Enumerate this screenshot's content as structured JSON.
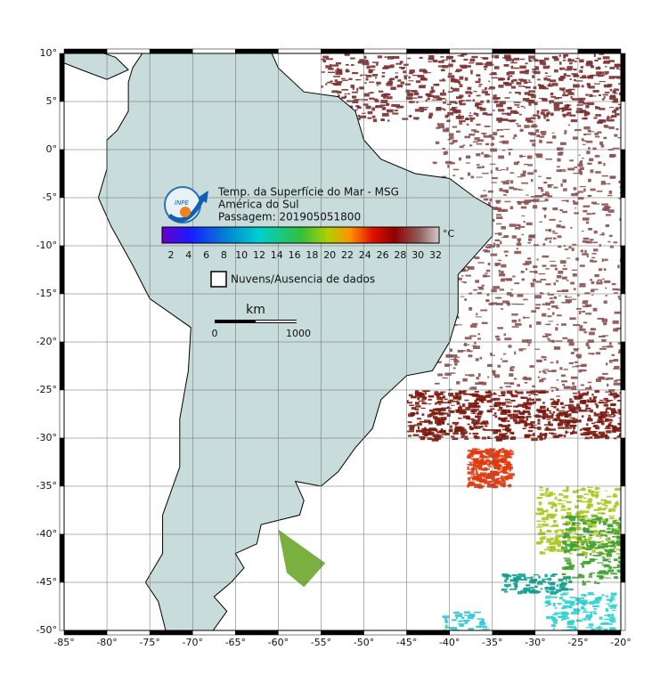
{
  "map": {
    "title_lines": [
      "Temp. da Superfície do Mar - MSG",
      "América do Sul",
      "Passagem: 201905051800"
    ],
    "colorbar": {
      "unit": "°C",
      "ticks": [
        2,
        4,
        6,
        8,
        10,
        12,
        14,
        16,
        18,
        20,
        22,
        24,
        26,
        28,
        30,
        32
      ]
    },
    "legend": "Nuvens/Ausencia de dados",
    "scale_bar": {
      "unit": "km",
      "start": 0,
      "end": 1000
    },
    "logo": "INPE",
    "lon_ticks": [
      {
        "value": -85,
        "label": "-85°"
      },
      {
        "value": -80,
        "label": "-80°"
      },
      {
        "value": -75,
        "label": "-75°"
      },
      {
        "value": -70,
        "label": "-70°"
      },
      {
        "value": -65,
        "label": "-65°"
      },
      {
        "value": -60,
        "label": "-60°"
      },
      {
        "value": -55,
        "label": "-55°"
      },
      {
        "value": -50,
        "label": "-50°"
      },
      {
        "value": -45,
        "label": "-45°"
      },
      {
        "value": -40,
        "label": "-40°"
      },
      {
        "value": -35,
        "label": "-35°"
      },
      {
        "value": -30,
        "label": "-30°"
      },
      {
        "value": -25,
        "label": "-25°"
      },
      {
        "value": -20,
        "label": "-20°"
      }
    ],
    "lat_ticks": [
      {
        "value": 10,
        "label": "10°"
      },
      {
        "value": 5,
        "label": "5°"
      },
      {
        "value": 0,
        "label": "0°"
      },
      {
        "value": -5,
        "label": "-5°"
      },
      {
        "value": -10,
        "label": "-10°"
      },
      {
        "value": -15,
        "label": "-15°"
      },
      {
        "value": -20,
        "label": "-20°"
      },
      {
        "value": -25,
        "label": "-25°"
      },
      {
        "value": -30,
        "label": "-30°"
      },
      {
        "value": -35,
        "label": "-35°"
      },
      {
        "value": -40,
        "label": "-40°"
      },
      {
        "value": -45,
        "label": "-45°"
      },
      {
        "value": -50,
        "label": "-50°"
      }
    ]
  }
}
